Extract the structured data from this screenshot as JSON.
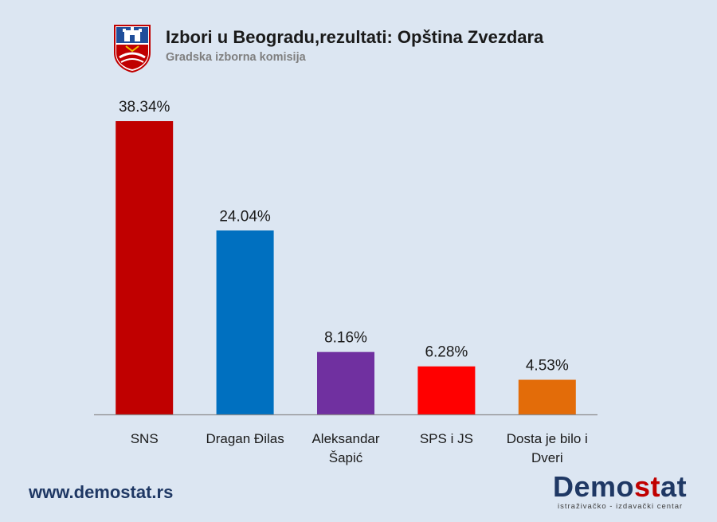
{
  "header": {
    "title": "Izbori u Beogradu,rezultati: Opština Zvezdara",
    "subtitle": "Gradska izborna komisija"
  },
  "footer": {
    "url": "www.demostat.rs",
    "brand_part1": "Demo",
    "brand_part2": "st",
    "brand_part3": "at",
    "brand_tagline": "istraživačko - izdavački centar"
  },
  "icons": {
    "crest": "belgrade-coat-of-arms-icon"
  },
  "chart_data": {
    "type": "bar",
    "categories": [
      "SNS",
      "Dragan Đilas",
      "Aleksandar Šapić",
      "SPS i JS",
      "Dosta je bilo i Dveri"
    ],
    "category_lines": [
      [
        "SNS"
      ],
      [
        "Dragan Đilas"
      ],
      [
        "Aleksandar",
        "Šapić"
      ],
      [
        "SPS i JS"
      ],
      [
        "Dosta je bilo i",
        "Dveri"
      ]
    ],
    "values": [
      38.34,
      24.04,
      8.16,
      6.28,
      4.53
    ],
    "data_labels": [
      "38.34%",
      "24.04%",
      "8.16%",
      "6.28%",
      "4.53%"
    ],
    "colors": [
      "#c00000",
      "#0070c0",
      "#7030a0",
      "#ff0000",
      "#e36c09"
    ],
    "ylim": [
      0,
      40
    ],
    "grid": false,
    "legend": "none"
  }
}
